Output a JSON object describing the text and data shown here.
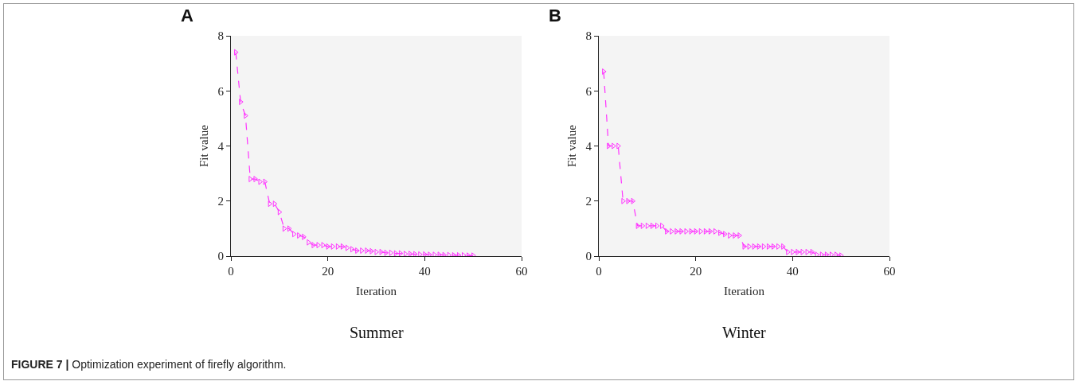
{
  "chart_data": [
    {
      "type": "line",
      "title": "A",
      "subtitle": "Summer",
      "xlabel": "Iteration",
      "ylabel": "Fit value",
      "xlim": [
        0,
        60
      ],
      "xticks": [
        0,
        20,
        40,
        60
      ],
      "ylim": [
        0,
        8
      ],
      "yticks": [
        0,
        2,
        4,
        6,
        8
      ],
      "grid": false,
      "marker": "triangle",
      "line_style": "dashed",
      "annotations": [
        "FIGURE 7 | Optimization experiment of firefly algorithm."
      ],
      "x": [
        1,
        2,
        3,
        4,
        5,
        6,
        7,
        8,
        9,
        10,
        11,
        12,
        13,
        14,
        15,
        16,
        17,
        18,
        19,
        20,
        21,
        22,
        23,
        24,
        25,
        26,
        27,
        28,
        29,
        30,
        31,
        32,
        33,
        34,
        35,
        36,
        37,
        38,
        39,
        40,
        41,
        42,
        43,
        44,
        45,
        46,
        47,
        48,
        49,
        50
      ],
      "series": [
        {
          "color": "#ff33ff",
          "values": [
            7.4,
            5.6,
            5.1,
            2.8,
            2.8,
            2.7,
            2.7,
            1.9,
            1.9,
            1.6,
            1.0,
            1.0,
            0.8,
            0.75,
            0.7,
            0.5,
            0.4,
            0.4,
            0.4,
            0.35,
            0.35,
            0.35,
            0.35,
            0.3,
            0.25,
            0.2,
            0.2,
            0.2,
            0.18,
            0.15,
            0.15,
            0.12,
            0.12,
            0.1,
            0.1,
            0.08,
            0.08,
            0.07,
            0.06,
            0.06,
            0.05,
            0.05,
            0.05,
            0.04,
            0.04,
            0.03,
            0.03,
            0.03,
            0.02,
            0.02
          ]
        }
      ]
    },
    {
      "type": "line",
      "title": "B",
      "subtitle": "Winter",
      "xlabel": "Iteration",
      "ylabel": "Fit value",
      "xlim": [
        0,
        60
      ],
      "xticks": [
        0,
        20,
        40,
        60
      ],
      "ylim": [
        0,
        8
      ],
      "yticks": [
        0,
        2,
        4,
        6,
        8
      ],
      "grid": false,
      "marker": "triangle",
      "line_style": "dashed",
      "x": [
        1,
        2,
        3,
        4,
        5,
        6,
        7,
        8,
        9,
        10,
        11,
        12,
        13,
        14,
        15,
        16,
        17,
        18,
        19,
        20,
        21,
        22,
        23,
        24,
        25,
        26,
        27,
        28,
        29,
        30,
        31,
        32,
        33,
        34,
        35,
        36,
        37,
        38,
        39,
        40,
        41,
        42,
        43,
        44,
        45,
        46,
        47,
        48,
        49,
        50
      ],
      "series": [
        {
          "color": "#ff33ff",
          "values": [
            6.7,
            4.0,
            4.0,
            4.0,
            2.0,
            2.0,
            2.0,
            1.1,
            1.1,
            1.1,
            1.1,
            1.1,
            1.1,
            0.9,
            0.9,
            0.9,
            0.9,
            0.9,
            0.9,
            0.9,
            0.9,
            0.9,
            0.9,
            0.9,
            0.85,
            0.8,
            0.75,
            0.75,
            0.75,
            0.35,
            0.35,
            0.35,
            0.35,
            0.35,
            0.35,
            0.35,
            0.35,
            0.35,
            0.15,
            0.15,
            0.15,
            0.15,
            0.15,
            0.15,
            0.05,
            0.05,
            0.05,
            0.05,
            0.05,
            0.02
          ]
        }
      ]
    }
  ]
}
